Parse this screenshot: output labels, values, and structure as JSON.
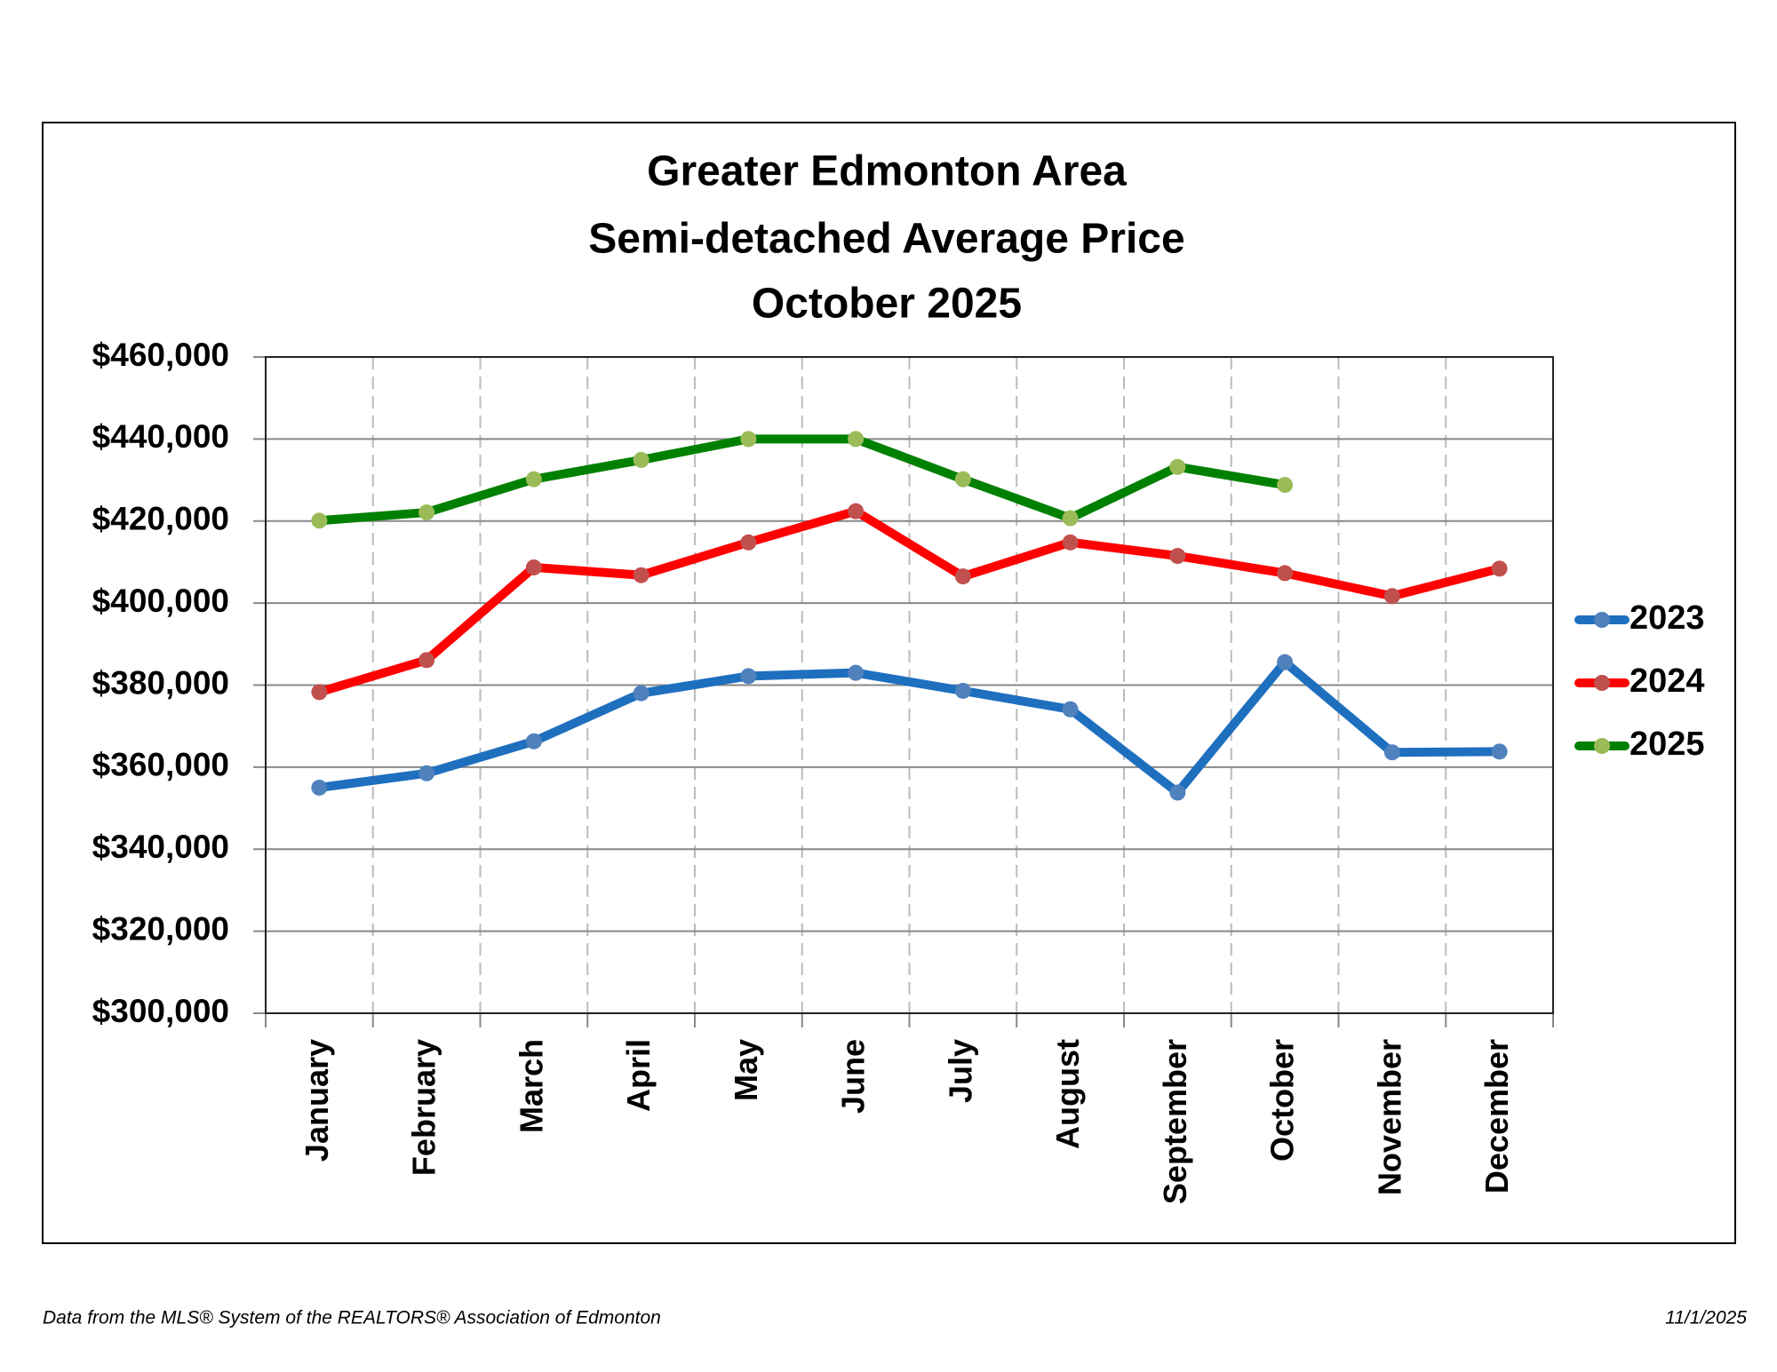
{
  "chart_data": {
    "type": "line",
    "title": [
      "Greater Edmonton Area",
      "Semi-detached Average Price",
      "October 2025"
    ],
    "categories": [
      "January",
      "February",
      "March",
      "April",
      "May",
      "June",
      "July",
      "August",
      "September",
      "October",
      "November",
      "December"
    ],
    "series": [
      {
        "name": "2023",
        "color": "#1f6fbf",
        "marker_color": "#4f81bd",
        "values": [
          355000,
          358500,
          366300,
          378000,
          382200,
          383000,
          378600,
          374100,
          353800,
          385600,
          363600,
          363800
        ]
      },
      {
        "name": "2024",
        "color": "#ff0000",
        "marker_color": "#c0504d",
        "values": [
          378300,
          386100,
          408700,
          406800,
          414800,
          422400,
          406500,
          414800,
          411500,
          407300,
          401700,
          408400
        ]
      },
      {
        "name": "2025",
        "color": "#008000",
        "marker_color": "#9bbb59",
        "values": [
          420100,
          422100,
          430200,
          434900,
          440000,
          440000,
          430200,
          420700,
          433200,
          428800,
          null,
          null
        ]
      }
    ],
    "ylim": [
      300000,
      460000
    ],
    "yticks": [
      {
        "value": 300000,
        "label": "$300,000"
      },
      {
        "value": 320000,
        "label": "$320,000"
      },
      {
        "value": 340000,
        "label": "$340,000"
      },
      {
        "value": 360000,
        "label": "$360,000"
      },
      {
        "value": 380000,
        "label": "$380,000"
      },
      {
        "value": 400000,
        "label": "$400,000"
      },
      {
        "value": 420000,
        "label": "$420,000"
      },
      {
        "value": 440000,
        "label": "$440,000"
      },
      {
        "value": 460000,
        "label": "$460,000"
      }
    ],
    "grid": true,
    "legend": "right",
    "source": "Data from the MLS® System of the REALTORS® Association of Edmonton",
    "date": "11/1/2025"
  }
}
